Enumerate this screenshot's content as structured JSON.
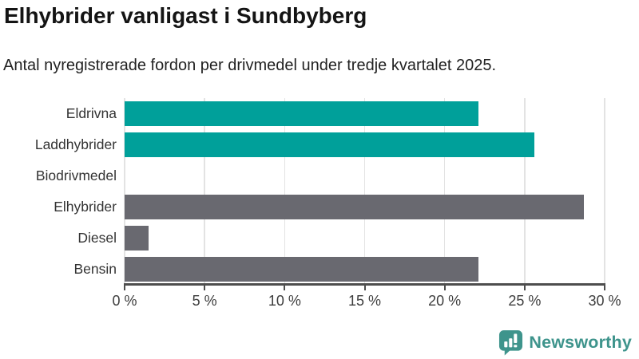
{
  "header": {
    "title": "Elhybrider vanligast i Sundbyberg",
    "subtitle": "Antal nyregistrerade fordon per drivmedel under tredje kvartalet 2025."
  },
  "chart_data": {
    "type": "bar",
    "orientation": "horizontal",
    "title": "Elhybrider vanligast i Sundbyberg",
    "subtitle": "Antal nyregistrerade fordon per drivmedel under tredje kvartalet 2025.",
    "categories": [
      "Eldrivna",
      "Laddhybrider",
      "Biodrivmedel",
      "Elhybrider",
      "Diesel",
      "Bensin"
    ],
    "values": [
      22.1,
      25.6,
      0,
      28.7,
      1.5,
      22.1
    ],
    "bar_colors": [
      "#00A09A",
      "#00A09A",
      "#696970",
      "#696970",
      "#696970",
      "#696970"
    ],
    "xlabel": "",
    "ylabel": "",
    "xlim": [
      0,
      30
    ],
    "x_ticks": [
      0,
      5,
      10,
      15,
      20,
      25,
      30
    ],
    "x_tick_suffix": " %",
    "grid": true,
    "legend": "none"
  },
  "colors": {
    "teal_bar": "#00A09A",
    "gray_bar": "#696970",
    "gridline": "#e3e3e3",
    "axis": "#4d4d4d",
    "title_text": "#141414",
    "label_text": "#333333",
    "tick_text": "#3d3d3d",
    "brand_teal": "#3E948C"
  },
  "footer": {
    "brand": "Newsworthy",
    "logo_icon": "bar-chart-speech-bubble-icon"
  }
}
